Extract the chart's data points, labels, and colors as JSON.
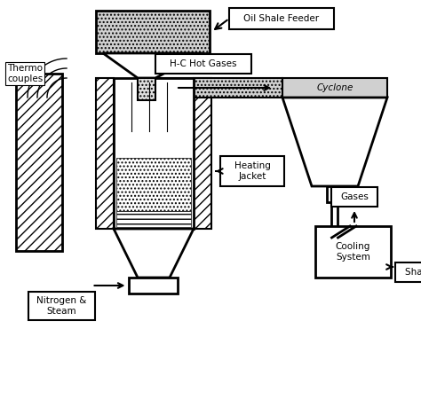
{
  "bg_color": "#ffffff",
  "labels": {
    "oil_shale_feeder": "Oil Shale Feeder",
    "thermo_couples": "Thermo\ncouples",
    "hc_hot_gases": "H-C Hot Gases",
    "cyclone": "Cyclone",
    "heating_jacket": "Heating\nJacket",
    "gases": "Gases",
    "cooling_system": "Cooling\nSystem",
    "shale_oil": "Shale Oil",
    "nitrogen_steam": "Nitrogen &\nSteam"
  }
}
